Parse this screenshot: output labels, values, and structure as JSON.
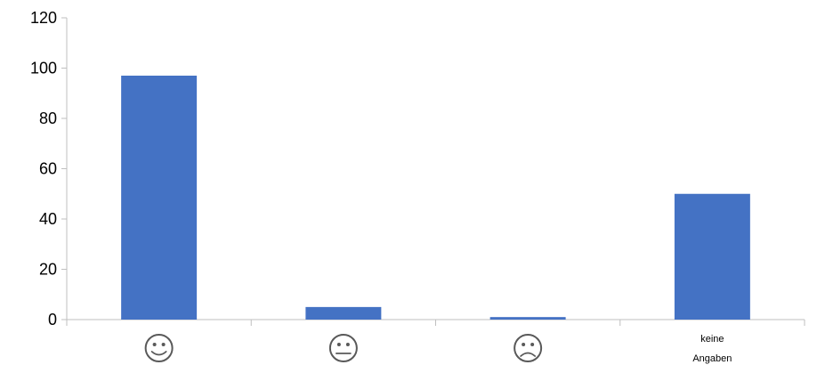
{
  "chart_data": {
    "type": "bar",
    "categories": [
      {
        "icon": "happy-face-icon",
        "label": ""
      },
      {
        "icon": "neutral-face-icon",
        "label": ""
      },
      {
        "icon": "sad-face-icon",
        "label": ""
      },
      {
        "icon": "",
        "label": "keine Angaben",
        "lines": [
          "keine",
          "Angaben"
        ]
      }
    ],
    "values": [
      97,
      5,
      1,
      50
    ],
    "ylim": [
      0,
      120
    ],
    "yticks": [
      "0",
      "20",
      "40",
      "60",
      "80",
      "100",
      "120"
    ],
    "grid": false,
    "legend": "none",
    "title": "",
    "xlabel": "",
    "ylabel": "",
    "colors": {
      "bar": "#4472C4",
      "axis": "#BFBFBF",
      "icon": "#595959"
    }
  }
}
